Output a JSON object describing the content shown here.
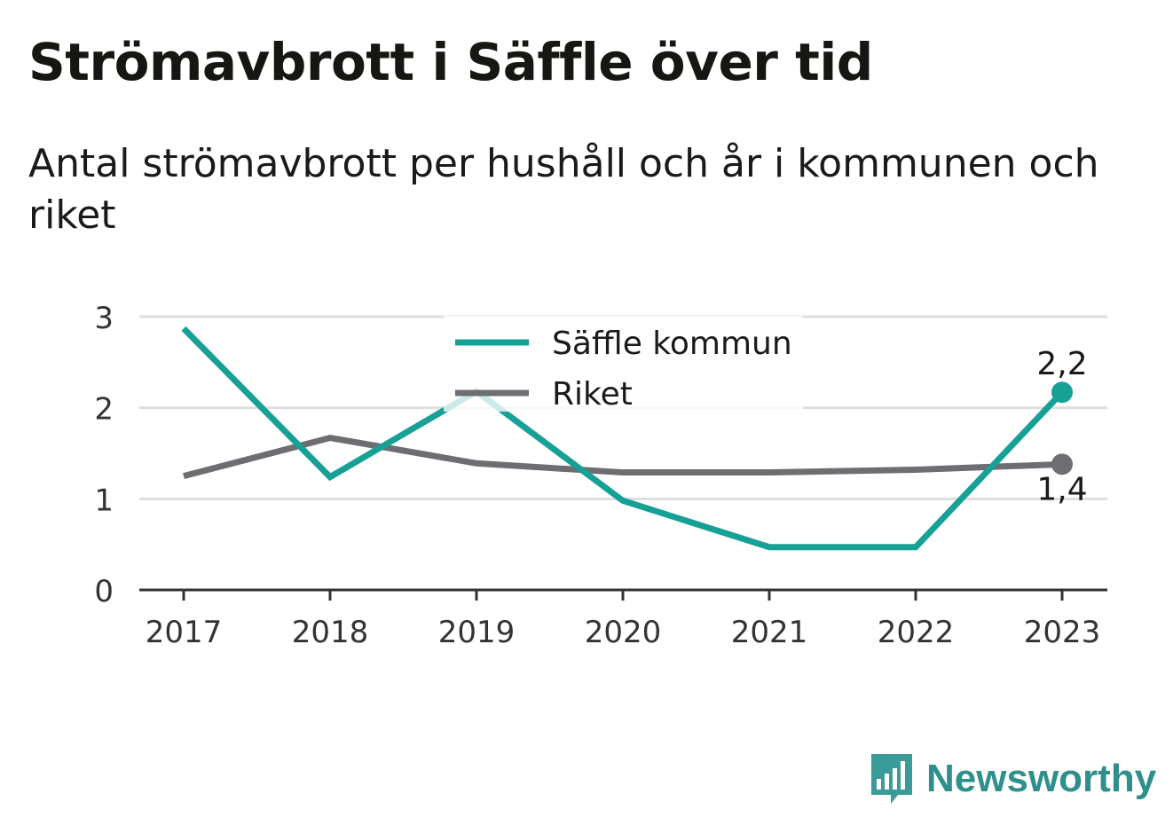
{
  "header": {
    "title": "Strömavbrott i Säffle över tid",
    "subtitle": "Antal strömavbrott per hushåll och år i kommunen och riket"
  },
  "brand": {
    "name": "Newsworthy",
    "icon": "newsworthy-logo-icon",
    "color": "#2e8f8c"
  },
  "chart_data": {
    "type": "line",
    "x": [
      "2017",
      "2018",
      "2019",
      "2020",
      "2021",
      "2022",
      "2023"
    ],
    "ylim": [
      0,
      3
    ],
    "yticks": [
      "0",
      "1",
      "2",
      "3"
    ],
    "grid": true,
    "legend_position": "top-center",
    "series": [
      {
        "name": "Säffle kommun",
        "color": "#16a096",
        "values": [
          2.87,
          1.24,
          2.18,
          0.98,
          0.47,
          0.47,
          2.17
        ],
        "end_label": "2,2"
      },
      {
        "name": "Riket",
        "color": "#6e6d72",
        "values": [
          1.25,
          1.67,
          1.39,
          1.29,
          1.29,
          1.32,
          1.38
        ],
        "end_label": "1,4"
      }
    ]
  }
}
